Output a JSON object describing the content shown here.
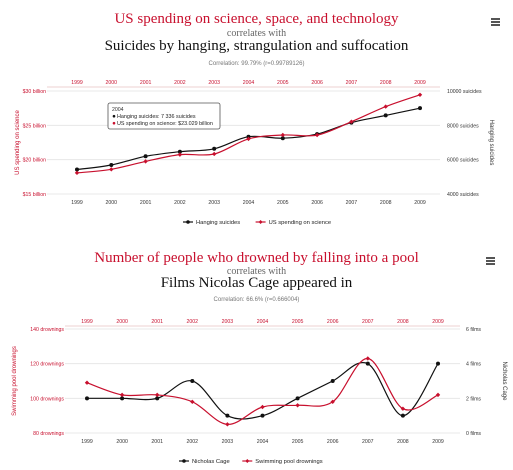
{
  "charts": [
    {
      "title": "US spending on science, space, and technology",
      "connector": "correlates with",
      "subtitle": "Suicides by hanging, strangulation and suffocation",
      "correlation_text": "Correlation: 99.79% (r=0.99789126)",
      "menu_icon": "hamburger-menu-icon"
    },
    {
      "title": "Number of people who drowned by falling into a pool",
      "connector": "correlates with",
      "subtitle": "Films Nicolas Cage appeared in",
      "correlation_text": "Correlation: 66.6% (r=0.666004)",
      "menu_icon": "hamburger-menu-icon"
    }
  ],
  "chart_data": [
    {
      "type": "line",
      "x": [
        "1999",
        "2000",
        "2001",
        "2002",
        "2003",
        "2004",
        "2005",
        "2006",
        "2007",
        "2008",
        "2009"
      ],
      "y_left_label": "US spending on science",
      "y_right_label": "Hanging suicides",
      "y_left_ticks": [
        "$15 billion",
        "$20 billion",
        "$25 billion",
        "$30 billion"
      ],
      "y_left_range": [
        15,
        30
      ],
      "y_right_ticks": [
        "4000 suicides",
        "6000 suicides",
        "8000 suicides",
        "10000 suicides"
      ],
      "y_right_range": [
        4000,
        10000
      ],
      "series": [
        {
          "name": "Hanging suicides",
          "axis": "right",
          "color": "#111111",
          "values": [
            5427,
            5688,
            6198,
            6462,
            6635,
            7336,
            7248,
            7491,
            8161,
            8578,
            9000
          ]
        },
        {
          "name": "US spending on science",
          "axis": "left",
          "color": "#c8102e",
          "values": [
            18.079,
            18.594,
            19.753,
            20.734,
            20.831,
            23.029,
            23.597,
            23.584,
            25.525,
            27.731,
            29.449
          ]
        }
      ],
      "tooltip": {
        "year": "2004",
        "lines": [
          "Hanging suicides: 7 336 suicides",
          "US spending on science: $23.029 billion"
        ]
      },
      "legend_position": "bottom"
    },
    {
      "type": "line",
      "x": [
        "1999",
        "2000",
        "2001",
        "2002",
        "2003",
        "2004",
        "2005",
        "2006",
        "2007",
        "2008",
        "2009"
      ],
      "y_left_label": "Swimming pool drownings",
      "y_right_label": "Nicholas Cage",
      "y_left_ticks": [
        "80 drownings",
        "100 drownings",
        "120 drownings",
        "140 drownings"
      ],
      "y_left_range": [
        80,
        140
      ],
      "y_right_ticks": [
        "0 films",
        "2 films",
        "4 films",
        "6 films"
      ],
      "y_right_range": [
        0,
        6
      ],
      "series": [
        {
          "name": "Nicholas Cage",
          "axis": "right",
          "color": "#111111",
          "values": [
            2,
            2,
            2,
            3,
            1,
            1,
            2,
            3,
            4,
            1,
            4
          ]
        },
        {
          "name": "Swimming pool drownings",
          "axis": "left",
          "color": "#c8102e",
          "values": [
            109,
            102,
            102,
            98,
            85,
            95,
            96,
            98,
            123,
            94,
            102
          ]
        }
      ],
      "legend_position": "bottom"
    }
  ]
}
